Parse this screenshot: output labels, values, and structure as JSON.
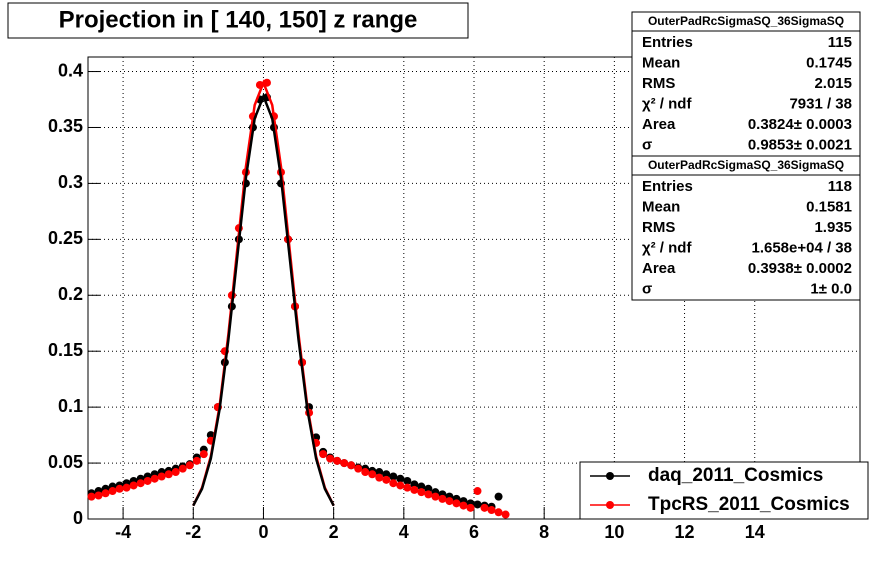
{
  "chart_data": {
    "type": "scatter",
    "title": "Projection in [ 140, 150] z range",
    "x": [
      -4.9,
      -4.7,
      -4.5,
      -4.3,
      -4.1,
      -3.9,
      -3.7,
      -3.5,
      -3.3,
      -3.1,
      -2.9,
      -2.7,
      -2.5,
      -2.3,
      -2.1,
      -1.9,
      -1.7,
      -1.5,
      -1.3,
      -1.1,
      -0.9,
      -0.7,
      -0.5,
      -0.3,
      -0.1,
      0.1,
      0.3,
      0.5,
      0.7,
      0.9,
      1.1,
      1.3,
      1.5,
      1.7,
      1.9,
      2.1,
      2.3,
      2.5,
      2.7,
      2.9,
      3.1,
      3.3,
      3.5,
      3.7,
      3.9,
      4.1,
      4.3,
      4.5,
      4.7,
      4.9,
      5.1,
      5.3,
      5.5,
      5.7,
      5.9,
      6.1,
      6.3,
      6.5,
      6.7,
      6.9
    ],
    "series": [
      {
        "name": "daq_2011_Cosmics",
        "color": "#000000",
        "values": [
          0.023,
          0.025,
          0.027,
          0.029,
          0.03,
          0.032,
          0.034,
          0.036,
          0.038,
          0.04,
          0.042,
          0.043,
          0.045,
          0.047,
          0.049,
          0.055,
          0.062,
          0.075,
          0.1,
          0.14,
          0.19,
          0.25,
          0.3,
          0.35,
          0.375,
          0.377,
          0.35,
          0.3,
          0.25,
          0.19,
          0.14,
          0.1,
          0.073,
          0.06,
          0.055,
          0.052,
          0.05,
          0.048,
          0.046,
          0.045,
          0.043,
          0.042,
          0.04,
          0.038,
          0.036,
          0.034,
          0.031,
          0.029,
          0.027,
          0.024,
          0.022,
          0.02,
          0.018,
          0.016,
          0.014,
          0.013,
          0.012,
          0.011,
          0.02,
          null
        ]
      },
      {
        "name": "TpcRS_2011_Cosmics",
        "color": "#ff0000",
        "values": [
          0.02,
          0.021,
          0.023,
          0.025,
          0.027,
          0.028,
          0.03,
          0.032,
          0.034,
          0.036,
          0.038,
          0.04,
          0.042,
          0.045,
          0.048,
          0.052,
          0.058,
          0.07,
          0.1,
          0.15,
          0.2,
          0.26,
          0.31,
          0.36,
          0.388,
          0.39,
          0.36,
          0.31,
          0.25,
          0.19,
          0.14,
          0.095,
          0.068,
          0.058,
          0.054,
          0.052,
          0.05,
          0.048,
          0.045,
          0.042,
          0.04,
          0.037,
          0.035,
          0.032,
          0.03,
          0.028,
          0.026,
          0.024,
          0.022,
          0.02,
          0.018,
          0.016,
          0.014,
          0.012,
          0.01,
          0.025,
          0.01,
          0.008,
          0.006,
          0.004
        ]
      }
    ],
    "fits": [
      {
        "color": "#ff0000",
        "x": [
          -2,
          -1.75,
          -1.5,
          -1.25,
          -1,
          -0.75,
          -0.5,
          -0.25,
          0,
          0.25,
          0.5,
          0.75,
          1,
          1.25,
          1.5,
          1.75,
          2
        ],
        "values": [
          0.012,
          0.028,
          0.056,
          0.101,
          0.165,
          0.24,
          0.315,
          0.37,
          0.39,
          0.37,
          0.315,
          0.24,
          0.165,
          0.101,
          0.056,
          0.028,
          0.012
        ]
      },
      {
        "color": "#000000",
        "x": [
          -2,
          -1.75,
          -1.5,
          -1.25,
          -1,
          -0.75,
          -0.5,
          -0.25,
          0,
          0.25,
          0.5,
          0.75,
          1,
          1.25,
          1.5,
          1.75,
          2
        ],
        "values": [
          0.012,
          0.027,
          0.054,
          0.098,
          0.16,
          0.233,
          0.305,
          0.358,
          0.378,
          0.358,
          0.305,
          0.233,
          0.16,
          0.098,
          0.054,
          0.027,
          0.012
        ]
      }
    ],
    "xlim": [
      -5,
      17
    ],
    "ylim": [
      0,
      0.413
    ],
    "xticks": [
      -4,
      -2,
      0,
      2,
      4,
      6,
      8,
      10,
      12,
      14
    ],
    "yticks": [
      0,
      0.05,
      0.1,
      0.15,
      0.2,
      0.25,
      0.3,
      0.35,
      0.4
    ],
    "grid": true,
    "stats": [
      {
        "title": "OuterPadRcSigmaSQ_36SigmaSQ",
        "rows": [
          {
            "label": "Entries",
            "value": "115"
          },
          {
            "label": "Mean",
            "value": "0.1745"
          },
          {
            "label": "RMS",
            "value": "2.015"
          },
          {
            "label": "χ² / ndf",
            "value": "7931 / 38"
          },
          {
            "label": "Area",
            "value": "0.3824± 0.0003"
          },
          {
            "label": "σ",
            "value": "0.9853± 0.0021"
          }
        ]
      },
      {
        "title": "OuterPadRcSigmaSQ_36SigmaSQ",
        "rows": [
          {
            "label": "Entries",
            "value": "118"
          },
          {
            "label": "Mean",
            "value": "0.1581"
          },
          {
            "label": "RMS",
            "value": "1.935"
          },
          {
            "label": "χ² / ndf",
            "value": "1.658e+04 / 38"
          },
          {
            "label": "Area",
            "value": "0.3938± 0.0002"
          },
          {
            "label": "σ",
            "value": "1± 0.0"
          }
        ]
      }
    ]
  }
}
